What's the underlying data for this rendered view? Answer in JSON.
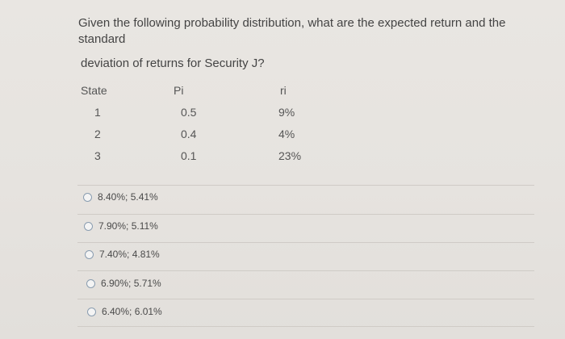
{
  "question": {
    "text": "Given the following probability distribution, what are the expected return and the standard",
    "text2": "deviation of returns for Security J?"
  },
  "table": {
    "headers": [
      "State",
      "Pi",
      "ri"
    ],
    "rows": [
      {
        "state": "1",
        "pi": "0.5",
        "ri": "9%"
      },
      {
        "state": "2",
        "pi": "0.4",
        "ri": "4%"
      },
      {
        "state": "3",
        "pi": "0.1",
        "ri": "23%"
      }
    ]
  },
  "options": [
    {
      "label": "8.40%; 5.41%"
    },
    {
      "label": "7.90%; 5.11%"
    },
    {
      "label": "7.40%; 4.81%"
    },
    {
      "label": "6.90%; 5.71%"
    },
    {
      "label": "6.40%; 6.01%"
    }
  ]
}
